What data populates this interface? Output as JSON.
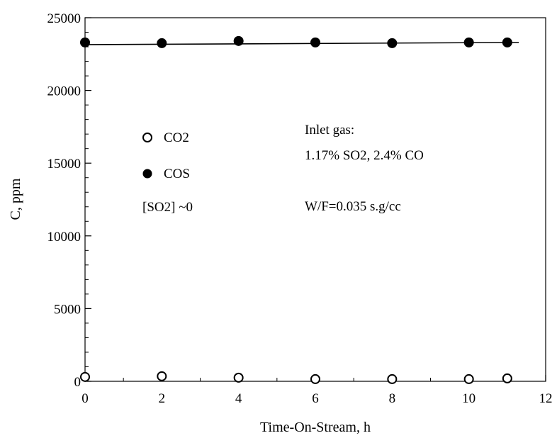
{
  "chart_data": {
    "type": "scatter",
    "title": "",
    "xlabel": "Time-On-Stream, h",
    "ylabel": "C, ppm",
    "xlim": [
      0,
      12
    ],
    "ylim": [
      0,
      25000
    ],
    "x_ticks": [
      "0",
      "2",
      "4",
      "6",
      "8",
      "10",
      "12"
    ],
    "y_ticks": [
      "0",
      "5000",
      "10000",
      "15000",
      "20000",
      "25000"
    ],
    "series": [
      {
        "name": "CO2",
        "marker": "open-circle",
        "x": [
          0,
          2,
          4,
          6,
          8,
          10,
          11
        ],
        "y": [
          300,
          350,
          250,
          150,
          150,
          150,
          200
        ]
      },
      {
        "name": "COS",
        "marker": "filled-circle",
        "x": [
          0,
          2,
          4,
          6,
          8,
          10,
          11
        ],
        "y": [
          23300,
          23250,
          23400,
          23300,
          23250,
          23300,
          23300
        ]
      }
    ],
    "fit_line": {
      "series": "COS",
      "x": [
        0,
        11.3
      ],
      "y": [
        23150,
        23300
      ]
    },
    "legend": {
      "placement": "left-middle",
      "note": "[SO2] ~0"
    },
    "annotations": [
      "Inlet gas:",
      "1.17% SO2, 2.4% CO",
      "W/F=0.035  s.g/cc"
    ],
    "grid": false
  }
}
